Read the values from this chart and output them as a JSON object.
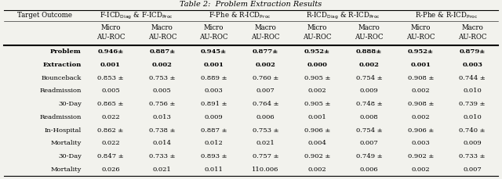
{
  "title": "Table 2:  Problem Extraction Results",
  "col_group_labels": [
    "F-ICD$_{\\mathrm{Diag}}$ & F-ICD$_{\\mathrm{Proc}}$",
    "F-Phe & R-ICD$_{\\mathrm{Proc}}$",
    "R-ICD$_{\\mathrm{Diag}}$ & R-ICD$_{\\mathrm{Proc}}$",
    "R-Phe & R-ICD$_{\\mathrm{Proc}}$"
  ],
  "sub_headers": [
    "Micro\nAU-ROC",
    "Macro\nAU-ROC",
    "Micro\nAU-ROC",
    "Macro\nAU-ROC",
    "Micro\nAU-ROC",
    "Macro\nAU-ROC",
    "Micro\nAU-ROC",
    "Macro\nAU-ROC"
  ],
  "row_labels": [
    "Problem",
    "Extraction",
    "Bounceback",
    "Readmission",
    "30-Day",
    "Readmission",
    "In-Hospital",
    "Mortality",
    "30-Day",
    "Mortality"
  ],
  "data": [
    [
      "0.946±",
      "0.887±",
      "0.945±",
      "0.877±",
      "0.952±",
      "0.888±",
      "0.952±",
      "0.879±"
    ],
    [
      "0.001",
      "0.002",
      "0.001",
      "0.002",
      "0.000",
      "0.002",
      "0.001",
      "0.003"
    ],
    [
      "0.853 ±",
      "0.753 ±",
      "0.889 ±",
      "0.760 ±",
      "0.905 ±",
      "0.754 ±",
      "0.908 ±",
      "0.744 ±"
    ],
    [
      "0.005",
      "0.005",
      "0.003",
      "0.007",
      "0.002",
      "0.009",
      "0.002",
      "0.010"
    ],
    [
      "0.865 ±",
      "0.756 ±",
      "0.891 ±",
      "0.764 ±",
      "0.905 ±",
      "0.748 ±",
      "0.908 ±",
      "0.739 ±"
    ],
    [
      "0.022",
      "0.013",
      "0.009",
      "0.006",
      "0.001",
      "0.008",
      "0.002",
      "0.010"
    ],
    [
      "0.862 ±",
      "0.738 ±",
      "0.887 ±",
      "0.753 ±",
      "0.906 ±",
      "0.754 ±",
      "0.906 ±",
      "0.740 ±"
    ],
    [
      "0.022",
      "0.014",
      "0.012",
      "0.021",
      "0.004",
      "0.007",
      "0.003",
      "0.009"
    ],
    [
      "0.847 ±",
      "0.733 ±",
      "0.893 ±",
      "0.757 ±",
      "0.902 ±",
      "0.749 ±",
      "0.902 ±",
      "0.733 ±"
    ],
    [
      "0.026",
      "0.021",
      "0.011",
      "110.006",
      "0.002",
      "0.006",
      "0.002",
      "0.007"
    ]
  ],
  "bold_rows": [
    0,
    1
  ],
  "background_color": "#f2f2ed",
  "figsize": [
    6.4,
    2.29
  ],
  "dpi": 100
}
